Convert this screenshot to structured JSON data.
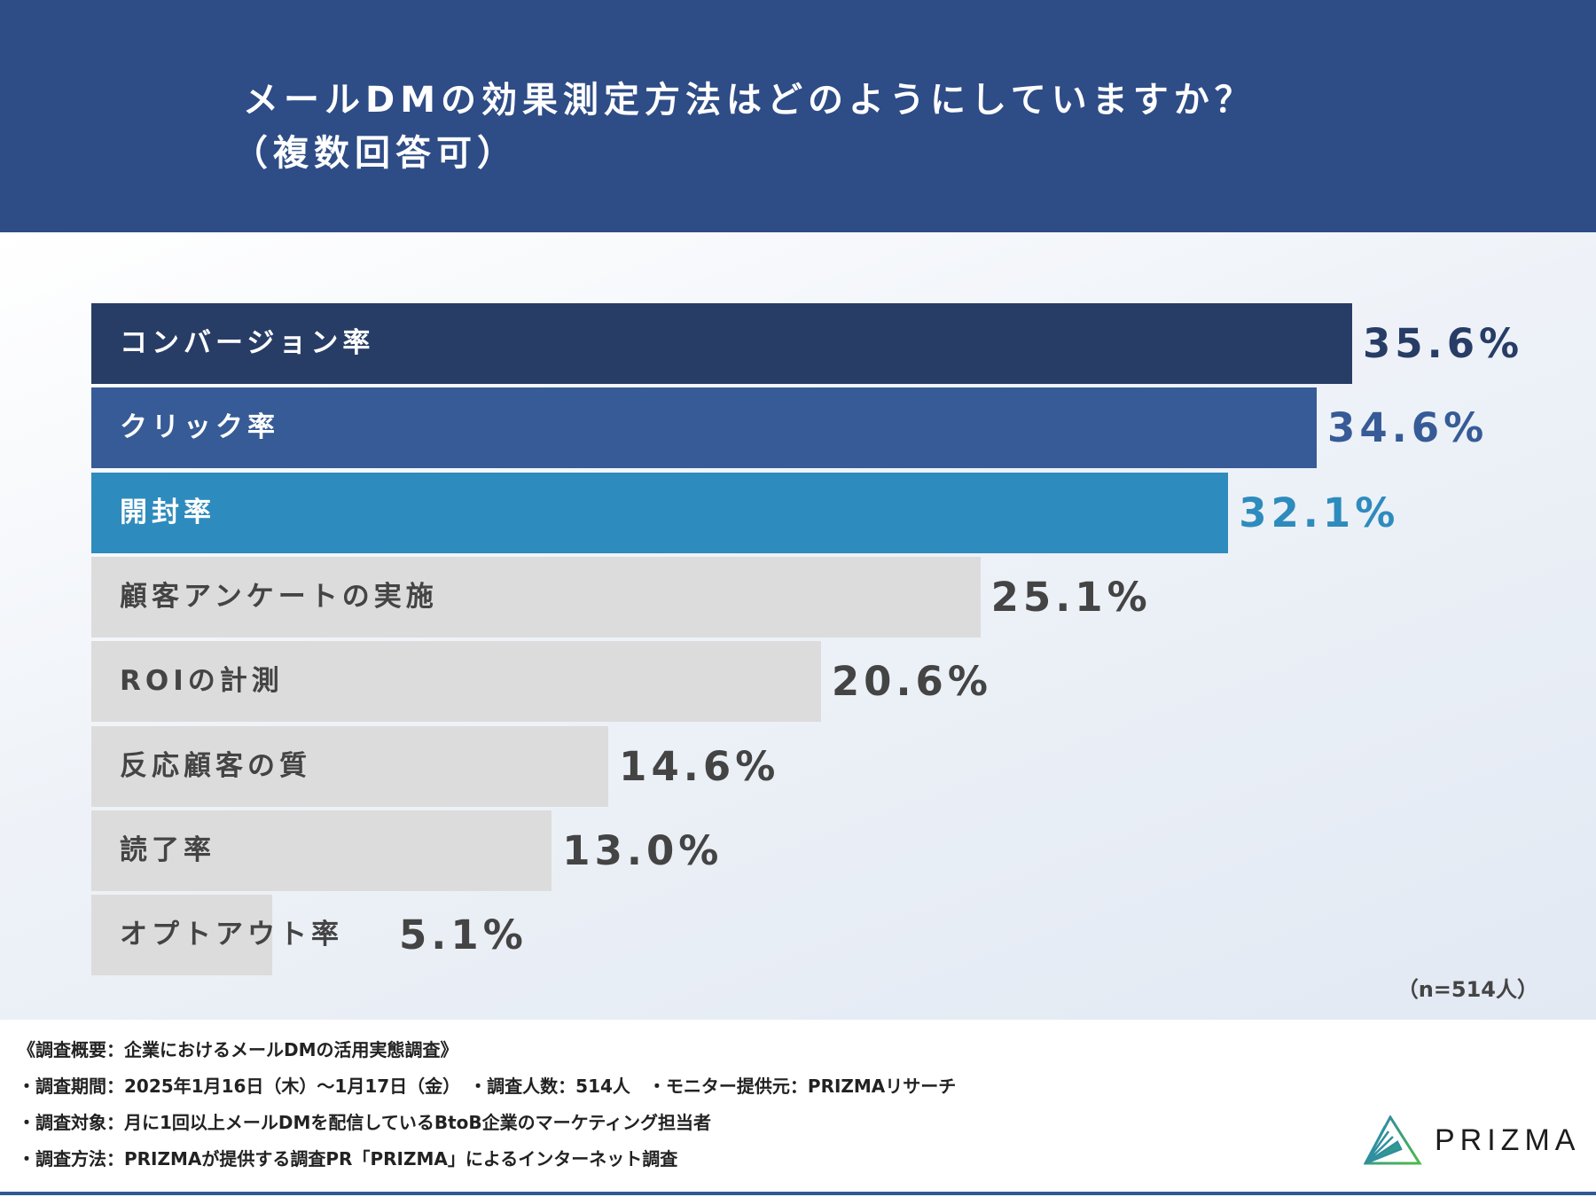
{
  "title": {
    "line1": "メールDMの効果測定方法はどのようにしていますか？",
    "line2": "（複数回答可）"
  },
  "chart_data": {
    "type": "bar",
    "orientation": "horizontal",
    "title": "メールDMの効果測定方法はどのようにしていますか？（複数回答可）",
    "categories": [
      "コンバージョン率",
      "クリック率",
      "開封率",
      "顧客アンケートの実施",
      "ROIの計測",
      "反応顧客の質",
      "読了率",
      "オプトアウト率"
    ],
    "values": [
      35.6,
      34.6,
      32.1,
      25.1,
      20.6,
      14.6,
      13.0,
      5.1
    ],
    "value_labels": [
      "35.6%",
      "34.6%",
      "32.1%",
      "25.1%",
      "20.6%",
      "14.6%",
      "13.0%",
      "5.1%"
    ],
    "unit": "%",
    "xlim": [
      0,
      35.6
    ],
    "bar_colors": [
      "#273d66",
      "#365b96",
      "#2e8bbd",
      "#dcdcdc",
      "#dcdcdc",
      "#dcdcdc",
      "#dcdcdc",
      "#dcdcdc"
    ],
    "label_colors": [
      "#ffffff",
      "#ffffff",
      "#ffffff",
      "#444444",
      "#444444",
      "#444444",
      "#444444",
      "#444444"
    ],
    "value_colors": [
      "#273d66",
      "#365b96",
      "#2e8bbd",
      "#444444",
      "#444444",
      "#444444",
      "#444444",
      "#444444"
    ],
    "note": "（n=514人）"
  },
  "footer": {
    "lines": [
      "《調査概要：企業におけるメールDMの活用実態調査》",
      "・調査期間：2025年1月16日（木）〜1月17日（金）　・調査人数：514人　・モニター提供元：PRIZMAリサーチ",
      "・調査対象：月に1回以上メールDMを配信しているBtoB企業のマーケティング担当者",
      "・調査方法：PRIZMAが提供する調査PR「PRIZMA」によるインターネット調査"
    ],
    "logo": "PRIZMA"
  }
}
